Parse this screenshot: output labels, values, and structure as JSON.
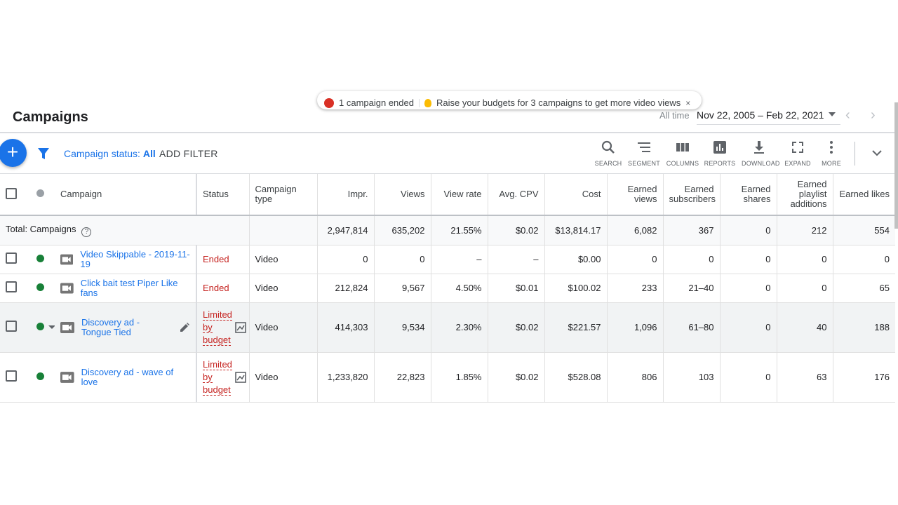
{
  "notice": {
    "ended_text": "1 campaign ended",
    "budget_text": "Raise your budgets for 3 campaigns to get more video views",
    "close": "×"
  },
  "header": {
    "title": "Campaigns",
    "date_label": "All time",
    "date_range": "Nov 22, 2005 – Feb 22, 2021",
    "prev": "‹",
    "next": "›"
  },
  "toolbar": {
    "add": "+",
    "status_filter_label": "Campaign status:",
    "status_filter_value": "All",
    "add_filter": "ADD FILTER",
    "tools": [
      "SEARCH",
      "SEGMENT",
      "COLUMNS",
      "REPORTS",
      "DOWNLOAD",
      "EXPAND",
      "MORE"
    ]
  },
  "table": {
    "headers": {
      "campaign": "Campaign",
      "status": "Status",
      "type": "Campaign type",
      "impr": "Impr.",
      "views": "Views",
      "view_rate": "View rate",
      "avg_cpv": "Avg. CPV",
      "cost": "Cost",
      "earned_views": "Earned views",
      "earned_subscribers": "Earned subscribers",
      "earned_shares": "Earned shares",
      "earned_playlist": "Earned playlist additions",
      "earned_likes": "Earned likes"
    },
    "total": {
      "label": "Total: Campaigns",
      "help": "?",
      "impr": "2,947,814",
      "views": "635,202",
      "view_rate": "21.55%",
      "avg_cpv": "$0.02",
      "cost": "$13,814.17",
      "earned_views": "6,082",
      "earned_subscribers": "367",
      "earned_shares": "0",
      "earned_playlist": "212",
      "earned_likes": "554"
    },
    "rows": [
      {
        "name": "Video Skippable - 2019-11-19",
        "status": "Ended",
        "type": "Video",
        "impr": "0",
        "views": "0",
        "view_rate": "–",
        "avg_cpv": "–",
        "cost": "$0.00",
        "earned_views": "0",
        "earned_subscribers": "0",
        "earned_shares": "0",
        "earned_playlist": "0",
        "earned_likes": "0"
      },
      {
        "name": "Click bait test Piper Like fans",
        "status": "Ended",
        "type": "Video",
        "impr": "212,824",
        "views": "9,567",
        "view_rate": "4.50%",
        "avg_cpv": "$0.01",
        "cost": "$100.02",
        "earned_views": "233",
        "earned_subscribers": "21–40",
        "earned_shares": "0",
        "earned_playlist": "0",
        "earned_likes": "65"
      },
      {
        "name": "Discovery ad - Tongue Tied",
        "status_lines": [
          "Limited",
          "by",
          "budget"
        ],
        "type": "Video",
        "impr": "414,303",
        "views": "9,534",
        "view_rate": "2.30%",
        "avg_cpv": "$0.02",
        "cost": "$221.57",
        "earned_views": "1,096",
        "earned_subscribers": "61–80",
        "earned_shares": "0",
        "earned_playlist": "40",
        "earned_likes": "188"
      },
      {
        "name": "Discovery ad - wave of love",
        "status_lines": [
          "Limited",
          "by",
          "budget"
        ],
        "type": "Video",
        "impr": "1,233,820",
        "views": "22,823",
        "view_rate": "1.85%",
        "avg_cpv": "$0.02",
        "cost": "$528.08",
        "earned_views": "806",
        "earned_subscribers": "103",
        "earned_shares": "0",
        "earned_playlist": "63",
        "earned_likes": "176"
      }
    ]
  },
  "colors": {
    "accent": "#1a73e8",
    "status_red": "#c5221f",
    "enabled_green": "#188038"
  }
}
